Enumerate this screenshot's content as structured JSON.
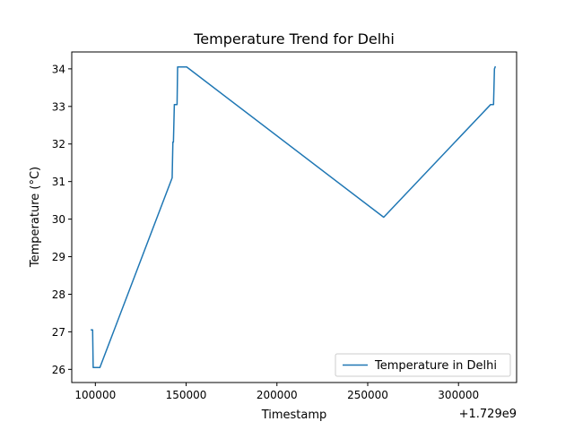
{
  "chart_data": {
    "type": "line",
    "title": "Temperature Trend for Delhi",
    "xlabel": "Timestamp",
    "ylabel": "Temperature (°C)",
    "x_offset_label": "+1.729e9",
    "xlim": [
      87000,
      332000
    ],
    "ylim": [
      25.65,
      34.45
    ],
    "x_ticks": [
      100000,
      150000,
      200000,
      250000,
      300000
    ],
    "x_tick_labels": [
      "100000",
      "150000",
      "200000",
      "250000",
      "300000"
    ],
    "y_ticks": [
      26,
      27,
      28,
      29,
      30,
      31,
      32,
      33,
      34
    ],
    "y_tick_labels": [
      "26",
      "27",
      "28",
      "29",
      "30",
      "31",
      "32",
      "33",
      "34"
    ],
    "grid": false,
    "legend_position": "lower-right",
    "series": [
      {
        "name": "Temperature in Delhi",
        "color": "#1f77b4",
        "x": [
          97800,
          98500,
          98800,
          102500,
          142300,
          142700,
          143000,
          143500,
          143800,
          145000,
          145300,
          146000,
          150300,
          258800,
          317700,
          318200,
          319300,
          319800,
          320200
        ],
        "y": [
          27.05,
          27.05,
          26.05,
          26.05,
          31.1,
          32.05,
          32.05,
          33.05,
          33.05,
          33.05,
          34.05,
          34.05,
          34.05,
          30.05,
          33.05,
          33.05,
          33.05,
          34.0,
          34.05
        ]
      }
    ]
  }
}
